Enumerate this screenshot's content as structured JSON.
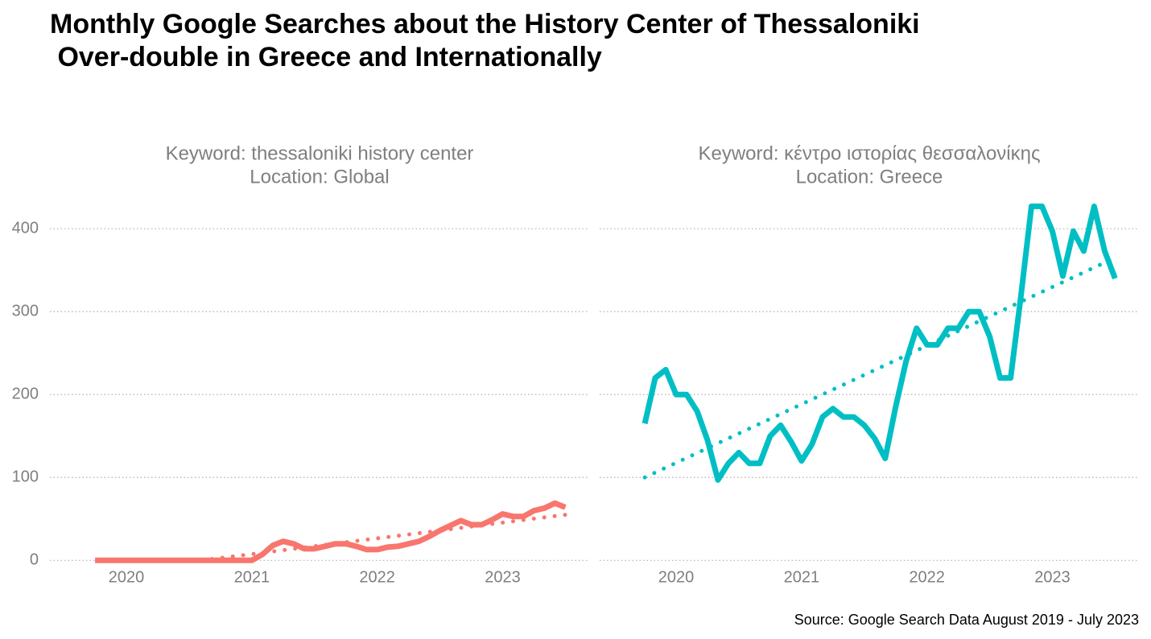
{
  "chart_data": {
    "type": "line",
    "title": [
      "Monthly Google Searches about the History Center of Thessaloniki",
      " Over-double in Greece and Internationally"
    ],
    "caption": "Source: Google Search Data August 2019 - July 2023",
    "ylim": [
      -23,
      440
    ],
    "yticks": [
      0,
      100,
      200,
      300,
      400
    ],
    "xlim": [
      2019.39,
      2023.69
    ],
    "xticks": [
      2020,
      2021,
      2022,
      2023
    ],
    "grid": true,
    "facets": [
      {
        "title": [
          "Keyword: thessaloniki history center",
          "Location: Global"
        ],
        "x": [
          2019.75,
          2019.833,
          2019.917,
          2020,
          2020.083,
          2020.167,
          2020.25,
          2020.333,
          2020.417,
          2020.5,
          2020.583,
          2020.667,
          2020.75,
          2020.833,
          2020.917,
          2021,
          2021.083,
          2021.167,
          2021.25,
          2021.333,
          2021.417,
          2021.5,
          2021.583,
          2021.667,
          2021.75,
          2021.833,
          2021.917,
          2022,
          2022.083,
          2022.167,
          2022.25,
          2022.333,
          2022.417,
          2022.5,
          2022.583,
          2022.667,
          2022.75,
          2022.833,
          2022.917,
          2023,
          2023.083,
          2023.167,
          2023.25,
          2023.333,
          2023.417,
          2023.5
        ],
        "series": [
          {
            "color": "#f8766d",
            "values": [
              0,
              0,
              0,
              0,
              0,
              0,
              0,
              0,
              0,
              0,
              0,
              0,
              0,
              0,
              0,
              0,
              7,
              18,
              23,
              20,
              14,
              14,
              17,
              20,
              20,
              17,
              13,
              13,
              16,
              17,
              20,
              23,
              29,
              36,
              42,
              48,
              43,
              43,
              49,
              56,
              53,
              53,
              60,
              63,
              69,
              64
            ]
          }
        ],
        "trend": {
          "x": [
            2020.6,
            2023.5
          ],
          "values": [
            0,
            55
          ]
        }
      },
      {
        "title": [
          "Keyword: κέντρο ιστορίας θεσσαλονίκης",
          "Location: Greece"
        ],
        "x": [
          2019.75,
          2019.833,
          2019.917,
          2020,
          2020.083,
          2020.167,
          2020.25,
          2020.333,
          2020.417,
          2020.5,
          2020.583,
          2020.667,
          2020.75,
          2020.833,
          2020.917,
          2021,
          2021.083,
          2021.167,
          2021.25,
          2021.333,
          2021.417,
          2021.5,
          2021.583,
          2021.667,
          2021.75,
          2021.833,
          2021.917,
          2022,
          2022.083,
          2022.167,
          2022.25,
          2022.333,
          2022.417,
          2022.5,
          2022.583,
          2022.667,
          2022.75,
          2022.833,
          2022.917,
          2023,
          2023.083,
          2023.167,
          2023.25,
          2023.333,
          2023.417,
          2023.5
        ],
        "series": [
          {
            "color": "#00bfc4",
            "values": [
              165,
              220,
              230,
              200,
              200,
              180,
              145,
              97,
              117,
              130,
              117,
              117,
              150,
              163,
              143,
              120,
              140,
              173,
              183,
              173,
              173,
              163,
              147,
              123,
              185,
              240,
              280,
              260,
              260,
              280,
              280,
              300,
              300,
              270,
              220,
              220,
              320,
              427,
              427,
              397,
              343,
              397,
              373,
              427,
              373,
              340
            ]
          }
        ],
        "trend": {
          "x": [
            2019.75,
            2023.5
          ],
          "values": [
            100,
            365
          ]
        }
      }
    ]
  }
}
